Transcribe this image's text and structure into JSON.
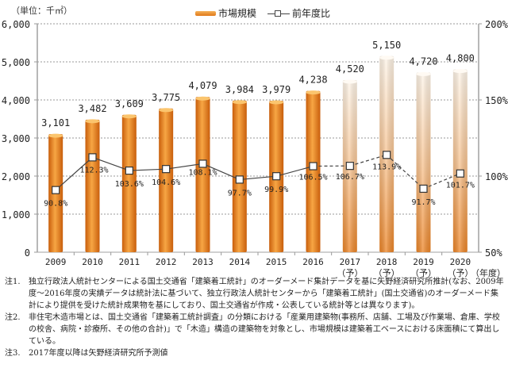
{
  "chart_data": {
    "type": "bar",
    "title": "",
    "unit_label": "（単位：千㎡）",
    "xlabel": "（年度）",
    "ylabel": "",
    "categories": [
      "2009",
      "2010",
      "2011",
      "2012",
      "2013",
      "2014",
      "2015",
      "2016",
      "2017\n（予）",
      "2018\n（予）",
      "2019\n（予）",
      "2020\n（予）"
    ],
    "forecast_from_index": 8,
    "series": [
      {
        "name": "市場規模",
        "type": "bar",
        "axis": "left",
        "values": [
          3101,
          3482,
          3609,
          3775,
          4079,
          3984,
          3979,
          4238,
          4520,
          5150,
          4720,
          4800
        ],
        "labels": [
          "3,101",
          "3,482",
          "3,609",
          "3,775",
          "4,079",
          "3,984",
          "3,979",
          "4,238",
          "4,520",
          "5,150",
          "4,720",
          "4,800"
        ]
      },
      {
        "name": "前年度比",
        "type": "line",
        "axis": "right",
        "values": [
          90.8,
          112.3,
          103.6,
          104.6,
          108.1,
          97.7,
          99.9,
          106.5,
          106.7,
          113.9,
          91.7,
          101.7
        ],
        "labels": [
          "90.8%",
          "112.3%",
          "103.6%",
          "104.6%",
          "108.1%",
          "97.7%",
          "99.9%",
          "106.5%",
          "106.7%",
          "113.9%",
          "91.7%",
          "101.7%"
        ]
      }
    ],
    "ylim": [
      0,
      6000
    ],
    "yticks": [
      0,
      1000,
      2000,
      3000,
      4000,
      5000,
      6000
    ],
    "ytick_labels": [
      "0",
      "1,000",
      "2,000",
      "3,000",
      "4,000",
      "5,000",
      "6,000"
    ],
    "y2lim": [
      50,
      200
    ],
    "y2ticks": [
      50,
      100,
      150,
      200
    ],
    "y2tick_labels": [
      "50%",
      "100%",
      "150%",
      "200%"
    ],
    "grid": true,
    "legend_position": "top-center"
  },
  "legend": {
    "bar_label": "市場規模",
    "line_label": "前年度比"
  },
  "colors": {
    "bar_actual_top": "#f6a23a",
    "bar_actual_bottom": "#d86a10",
    "bar_forecast_top": "#fff4e6",
    "bar_forecast_bottom": "#f08a2a",
    "line": "#444444",
    "grid": "#999999"
  },
  "notes": [
    {
      "label": "注1.",
      "text": "独立行政法人統計センターによる国土交通省「建築着工統計」のオーダーメード集計データを基に矢野経済研究所推計(なお、2009年度～2016年度の実績データは統計法に基づいて、独立行政法人統計センターから「建築着工統計」(国土交通省)のオーダーメード集計により提供を受けた統計成果物を基にしており、国土交通省が作成・公表している統計等とは異なります)。"
    },
    {
      "label": "注2.",
      "text": "非住宅木造市場とは、国土交通省「建築着工統計調査」の分類における「産業用建築物(事務所、店舗、工場及び作業場、倉庫、学校の校舎、病院・診療所、その他の合計)」で「木造」構造の建築物を対象とし、市場規模は建築着工ベースにおける床面積にて算出している。"
    },
    {
      "label": "注3.",
      "text": "2017年度以降は矢野経済研究所予測値"
    }
  ]
}
